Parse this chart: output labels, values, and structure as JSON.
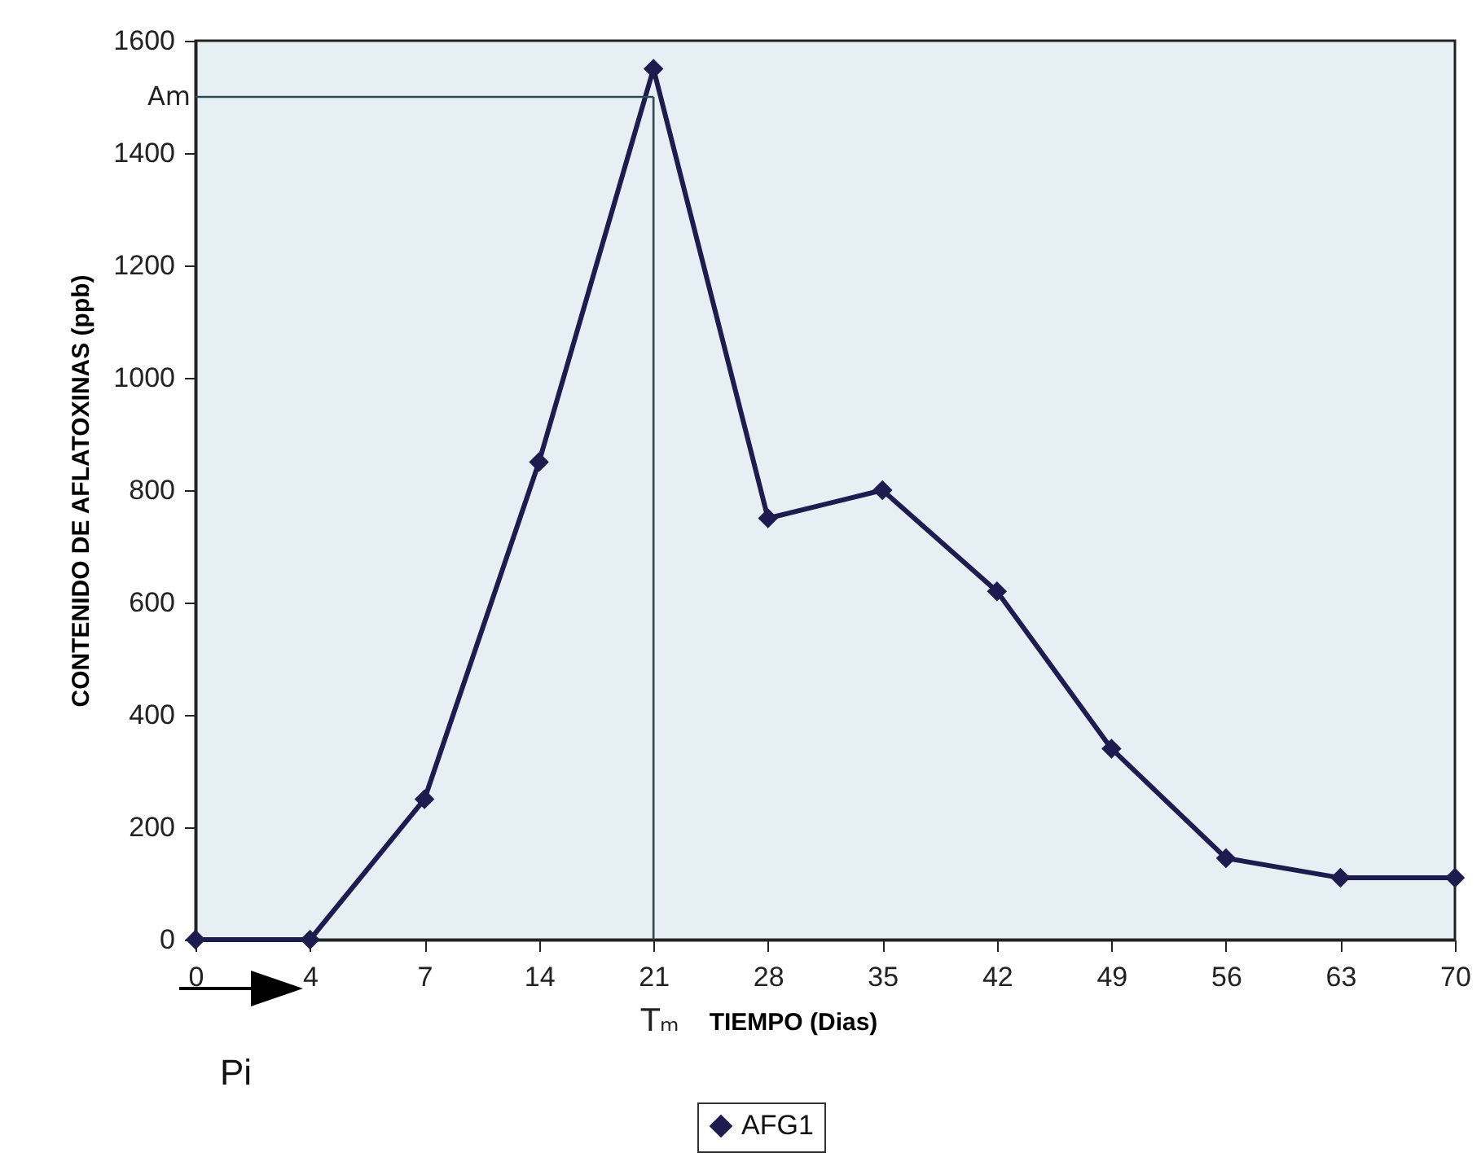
{
  "chart_data": {
    "type": "line",
    "xlabel": "TIEMPO (Dias)",
    "ylabel": "CONTENIDO DE AFLATOXINAS (ppb)",
    "categories": [
      "0",
      "4",
      "7",
      "14",
      "21",
      "28",
      "35",
      "42",
      "49",
      "56",
      "63",
      "70"
    ],
    "series": [
      {
        "name": "AFG1",
        "color": "#1c1c4e",
        "values": [
          0,
          0,
          250,
          850,
          1550,
          750,
          800,
          620,
          340,
          145,
          110,
          110
        ]
      }
    ],
    "ylim": [
      0,
      1600
    ],
    "yticks": [
      0,
      200,
      400,
      600,
      800,
      1000,
      1200,
      1400,
      1600
    ],
    "ref_lines": [
      {
        "axis": "y",
        "value": 1500,
        "label": "Am",
        "color": "#2e4a50"
      },
      {
        "axis": "x",
        "value": "21",
        "label": "Tₘ",
        "color": "#2e4a50"
      }
    ],
    "annotations": [
      "Pi"
    ],
    "grid": false,
    "legend": "bottom",
    "marker": "diamond",
    "line_style": "solid"
  }
}
